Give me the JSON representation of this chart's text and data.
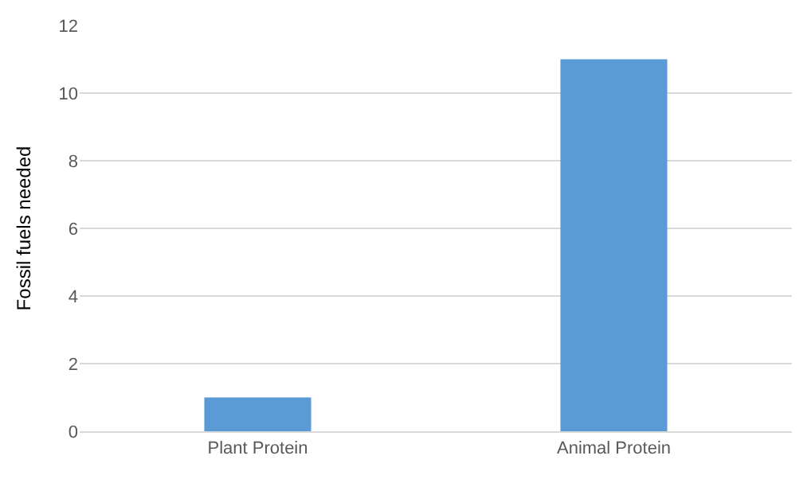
{
  "chart_data": {
    "type": "bar",
    "ylabel": "Fossil fuels needed",
    "categories": [
      "Plant Protein",
      "Animal Protein"
    ],
    "values": [
      1,
      11
    ],
    "color": "#5b9bd5",
    "ylim": [
      0,
      12
    ],
    "yticks": [
      0,
      2,
      4,
      6,
      8,
      10,
      12
    ],
    "grid": "y"
  }
}
